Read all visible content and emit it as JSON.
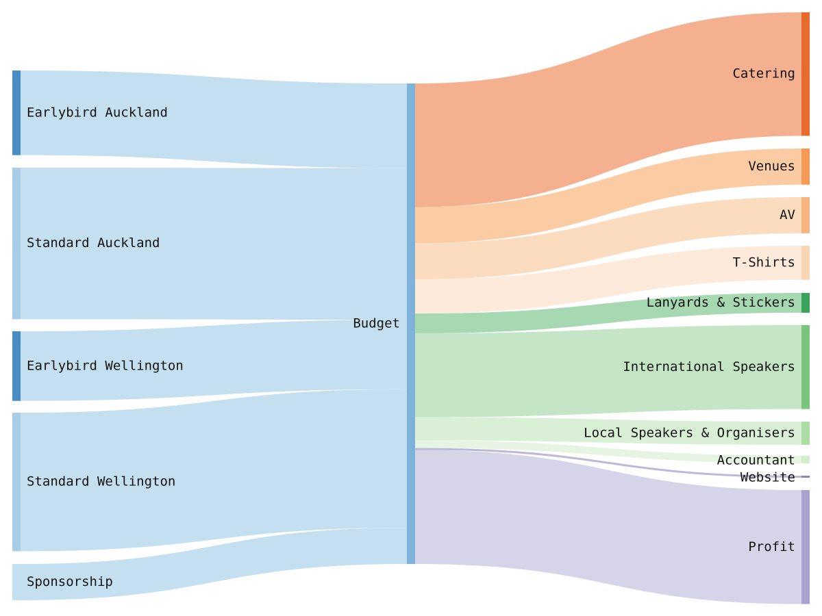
{
  "nodes": [
    {
      "id": "earlybird_auckland",
      "label": "Earlybird Auckland",
      "color": "#4a8cc4"
    },
    {
      "id": "standard_auckland",
      "label": "Standard Auckland",
      "color": "#a9cde6"
    },
    {
      "id": "earlybird_wellington",
      "label": "Earlybird Wellington",
      "color": "#4a8cc4"
    },
    {
      "id": "standard_wellington",
      "label": "Standard Wellington",
      "color": "#a9cde6"
    },
    {
      "id": "sponsorship",
      "label": "Sponsorship",
      "color": "#c4dff0"
    },
    {
      "id": "budget",
      "label": "Budget",
      "color": "#7eb2d9"
    },
    {
      "id": "catering",
      "label": "Catering",
      "color": "#e86a2c"
    },
    {
      "id": "venues",
      "label": "Venues",
      "color": "#f79a55"
    },
    {
      "id": "av",
      "label": "AV",
      "color": "#f8b47e"
    },
    {
      "id": "tshirts",
      "label": "T-Shirts",
      "color": "#fbd6b4"
    },
    {
      "id": "lanyards",
      "label": "Lanyards & Stickers",
      "color": "#3aa25a"
    },
    {
      "id": "intl_speakers",
      "label": "International Speakers",
      "color": "#79c57d"
    },
    {
      "id": "local_speakers",
      "label": "Local Speakers & Organisers",
      "color": "#abdca4"
    },
    {
      "id": "accountant",
      "label": "Accountant",
      "color": "#d3edcc"
    },
    {
      "id": "website",
      "label": "Website",
      "color": "#8b84be"
    },
    {
      "id": "profit",
      "label": "Profit",
      "color": "#a9a2cf"
    }
  ],
  "links": [
    {
      "source": "earlybird_auckland",
      "target": "budget",
      "value": 124
    },
    {
      "source": "standard_auckland",
      "target": "budget",
      "value": 222
    },
    {
      "source": "earlybird_wellington",
      "target": "budget",
      "value": 102
    },
    {
      "source": "standard_wellington",
      "target": "budget",
      "value": 203
    },
    {
      "source": "sponsorship",
      "target": "budget",
      "value": 53
    },
    {
      "source": "budget",
      "target": "catering",
      "value": 181,
      "color": "#f4b08f"
    },
    {
      "source": "budget",
      "target": "venues",
      "value": 53,
      "color": "#fbcba4"
    },
    {
      "source": "budget",
      "target": "av",
      "value": 53,
      "color": "#fcdcbf"
    },
    {
      "source": "budget",
      "target": "tshirts",
      "value": 50,
      "color": "#fdeadb"
    },
    {
      "source": "budget",
      "target": "lanyards",
      "value": 29,
      "color": "#a6d8b2"
    },
    {
      "source": "budget",
      "target": "intl_speakers",
      "value": 123,
      "color": "#c4e6c6"
    },
    {
      "source": "budget",
      "target": "local_speakers",
      "value": 34,
      "color": "#d9f0d6"
    },
    {
      "source": "budget",
      "target": "accountant",
      "value": 11,
      "color": "#e6f5e1"
    },
    {
      "source": "budget",
      "target": "website",
      "value": 3,
      "color": "#bdb8da"
    },
    {
      "source": "budget",
      "target": "profit",
      "value": 167,
      "color": "#d6d4e8"
    }
  ],
  "source_link_color": "#c4dff0"
}
